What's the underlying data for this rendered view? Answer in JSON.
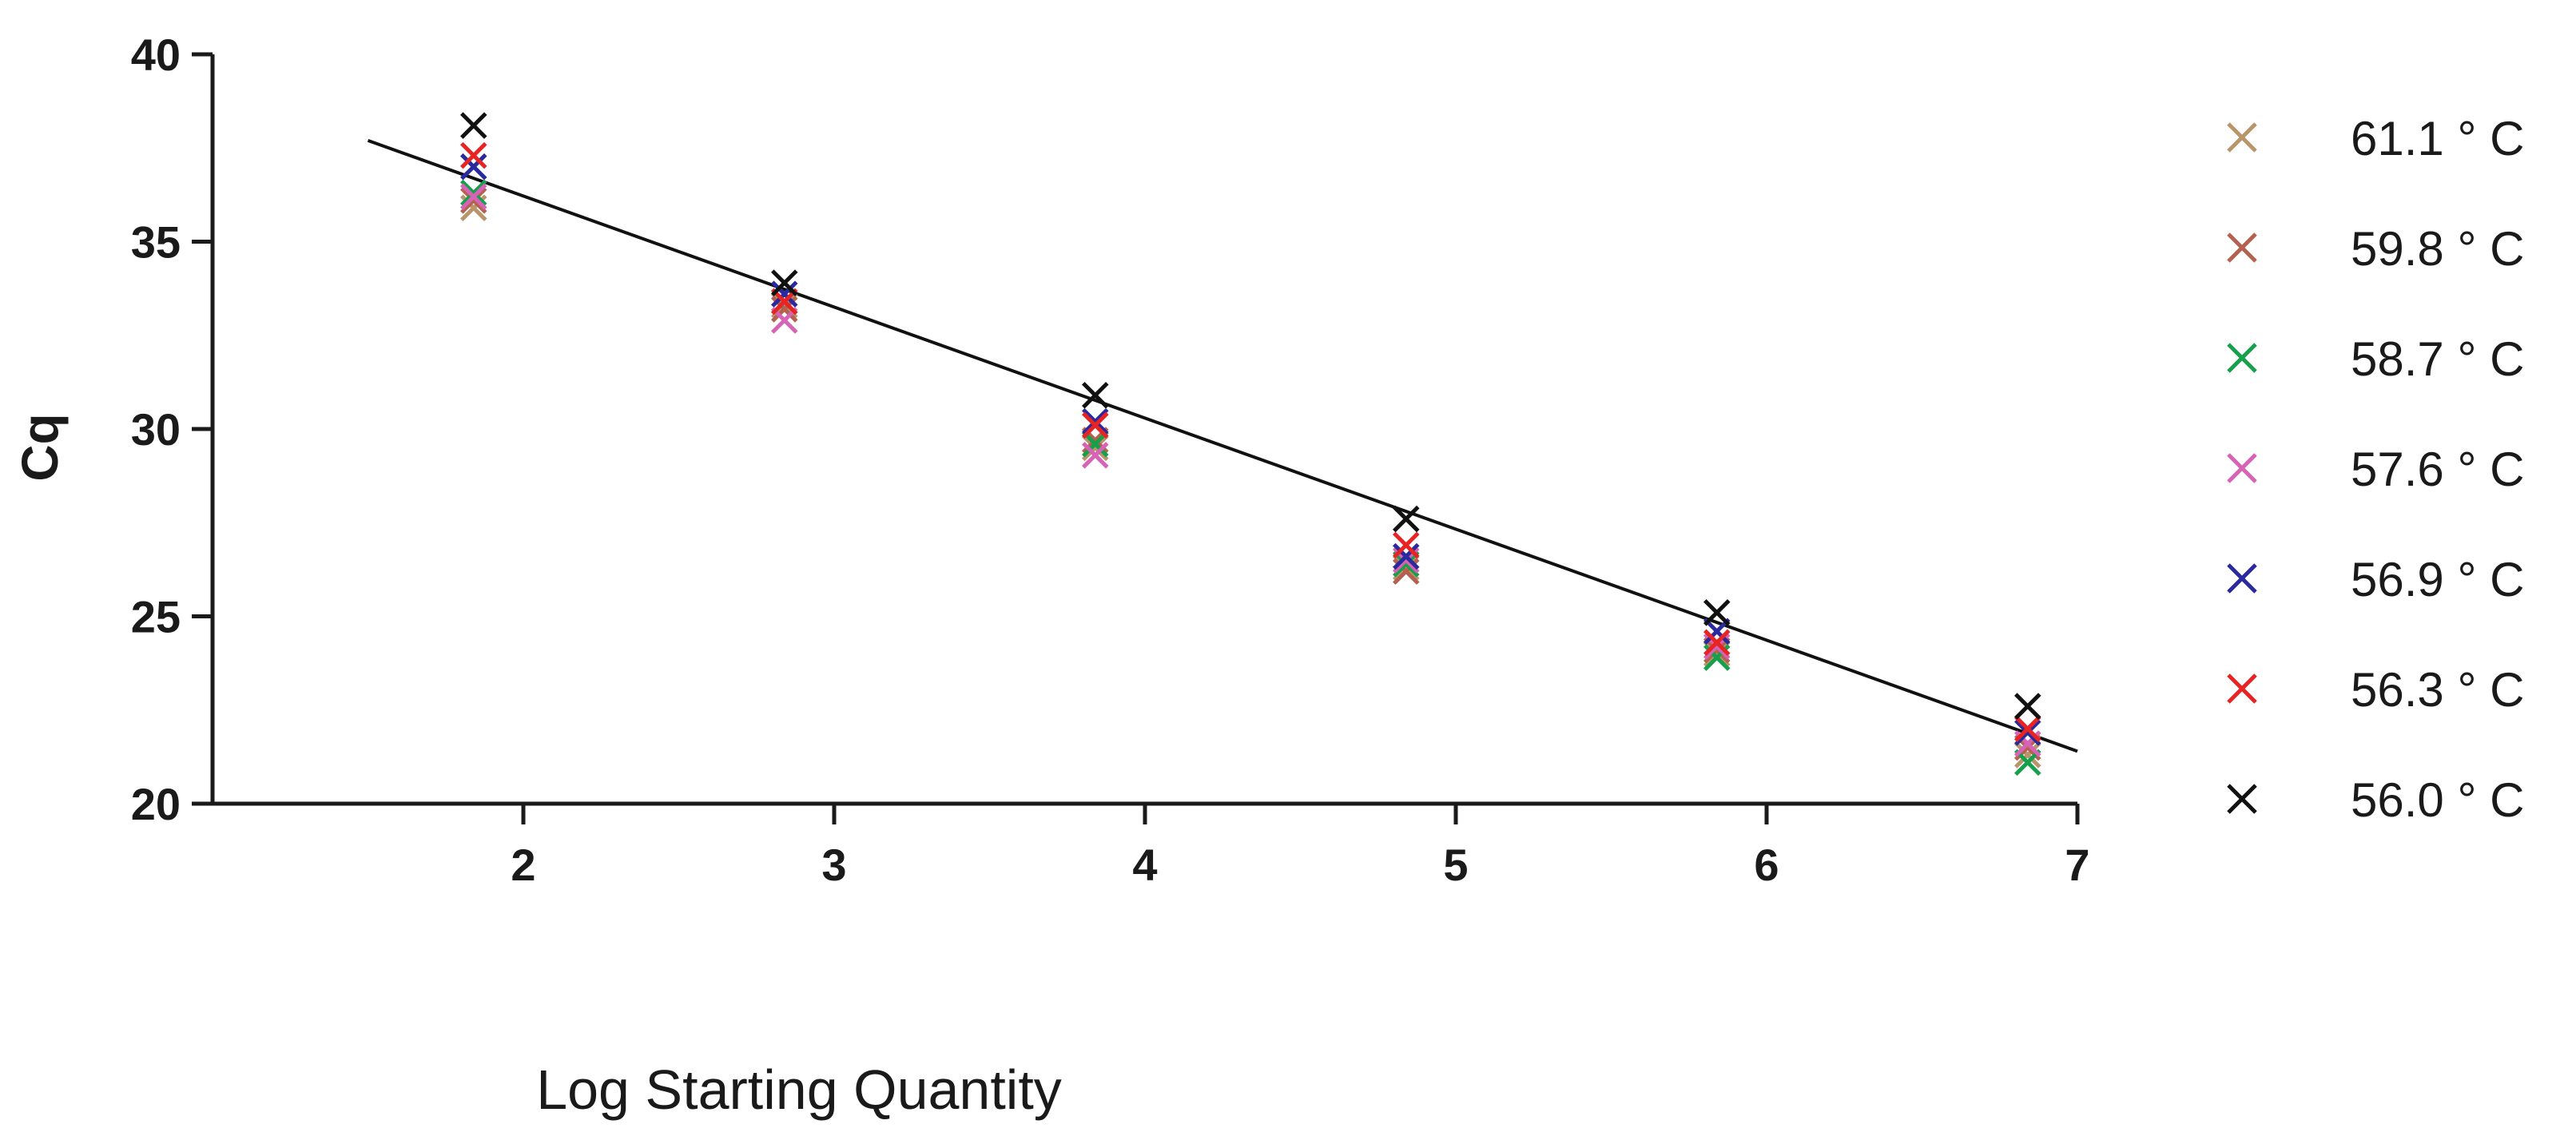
{
  "chart_data": {
    "type": "scatter",
    "title": "",
    "xlabel": "Log Starting Quantity",
    "ylabel": "Cq",
    "xlim": [
      1.0,
      7.0
    ],
    "ylim": [
      20,
      40
    ],
    "xticks": [
      2,
      3,
      4,
      5,
      6,
      7
    ],
    "xtick_labels": [
      "2",
      "3",
      "4",
      "5",
      "6",
      "7"
    ],
    "yticks": [
      20,
      25,
      30,
      35,
      40
    ],
    "ytick_labels": [
      "20",
      "25",
      "30",
      "35",
      "40"
    ],
    "grid": false,
    "legend_position": "right",
    "marker": "x",
    "x": [
      1.84,
      2.84,
      3.84,
      4.84,
      5.84,
      6.84
    ],
    "series": [
      {
        "name": "61.1 ° C",
        "color": "#b8956a",
        "values": [
          35.9,
          33.3,
          29.5,
          26.3,
          24.0,
          21.3
        ]
      },
      {
        "name": "59.8 ° C",
        "color": "#b5614f",
        "values": [
          36.1,
          33.2,
          29.7,
          26.2,
          24.1,
          21.5
        ]
      },
      {
        "name": "58.7 ° C",
        "color": "#17a04c",
        "values": [
          36.3,
          33.4,
          29.6,
          26.4,
          23.9,
          21.1
        ]
      },
      {
        "name": "57.6 ° C",
        "color": "#d663b5",
        "values": [
          36.2,
          32.9,
          29.3,
          26.5,
          24.2,
          21.6
        ]
      },
      {
        "name": "56.9 ° C",
        "color": "#2a2a9e",
        "values": [
          37.0,
          33.6,
          30.2,
          26.6,
          24.6,
          21.9
        ]
      },
      {
        "name": "56.3 ° C",
        "color": "#e82323",
        "values": [
          37.3,
          33.4,
          30.1,
          26.9,
          24.3,
          22.0
        ]
      },
      {
        "name": "56.0 ° C",
        "color": "#111111",
        "values": [
          38.1,
          33.9,
          30.9,
          27.6,
          25.1,
          22.6
        ]
      }
    ],
    "regression_line": {
      "x": [
        1.5,
        7.0
      ],
      "y": [
        37.7,
        21.4
      ],
      "color": "#111111"
    }
  }
}
